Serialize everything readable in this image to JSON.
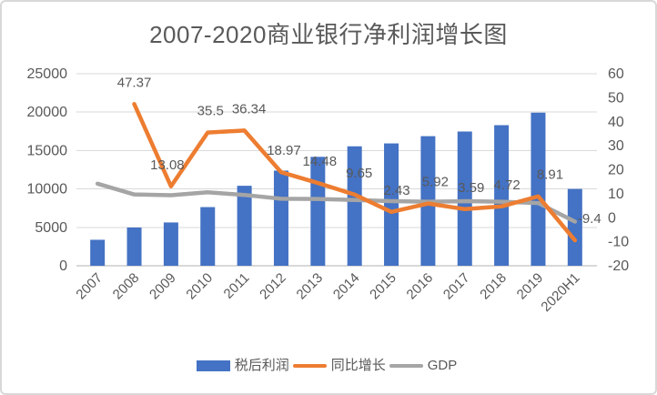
{
  "title": "2007-2020商业银行净利润增长图",
  "colors": {
    "bar": "#4472C4",
    "growth_line": "#ED7D31",
    "gdp_line": "#A5A5A5",
    "grid": "#D9D9D9",
    "axis": "#D9D9D9",
    "text": "#595959"
  },
  "legend": {
    "position": "bottom",
    "items": [
      "税后利润",
      "同比增长",
      "GDP"
    ]
  },
  "chart_data": {
    "type": "bar",
    "subtype": "combo-bar-line",
    "title": "2007-2020商业银行净利润增长图",
    "categories": [
      "2007",
      "2008",
      "2009",
      "2010",
      "2011",
      "2012",
      "2013",
      "2014",
      "2015",
      "2016",
      "2017",
      "2018",
      "2019",
      "2020H1"
    ],
    "series": [
      {
        "name": "税后利润",
        "type": "bar",
        "axis": "left",
        "values": [
          3382,
          4984,
          5636,
          7637,
          10412,
          12387,
          14181,
          15550,
          15928,
          16871,
          17477,
          18302,
          19932,
          10000
        ]
      },
      {
        "name": "同比增长",
        "type": "line",
        "axis": "right",
        "values": [
          null,
          47.37,
          13.08,
          35.5,
          36.34,
          18.97,
          14.48,
          9.65,
          2.43,
          5.92,
          3.59,
          4.72,
          8.91,
          -9.4
        ],
        "data_labels": [
          null,
          "47.37",
          "13.08",
          "35.5",
          "36.34",
          "18.97",
          "14.48",
          "9.65",
          "2.43",
          "5.92",
          "3.59",
          "4.72",
          "8.91",
          "-9.4"
        ]
      },
      {
        "name": "GDP",
        "type": "line",
        "axis": "right",
        "values": [
          14.2,
          9.7,
          9.4,
          10.6,
          9.5,
          7.9,
          7.8,
          7.4,
          6.9,
          6.7,
          6.9,
          6.7,
          6.1,
          -1.6
        ]
      }
    ],
    "left_axis": {
      "min": 0,
      "max": 25000,
      "ticks": [
        "0",
        "5000",
        "10000",
        "15000",
        "20000",
        "25000"
      ]
    },
    "right_axis": {
      "min": -20,
      "max": 60,
      "ticks": [
        "-20",
        "-10",
        "0",
        "10",
        "20",
        "30",
        "40",
        "50",
        "60"
      ]
    },
    "grid": true,
    "x_label_rotation": -45,
    "legend_position": "bottom"
  }
}
